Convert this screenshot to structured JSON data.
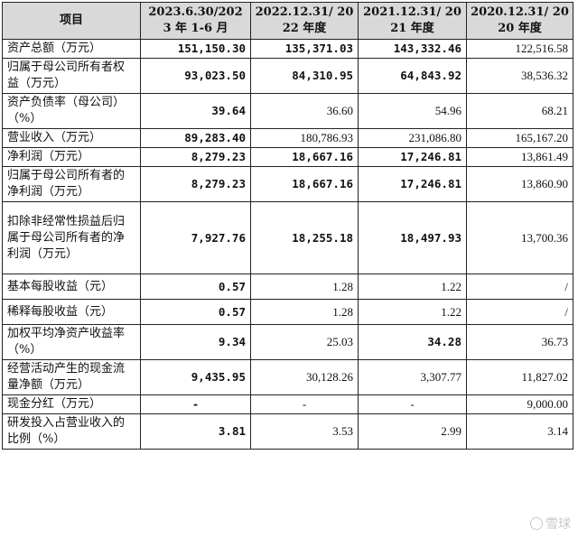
{
  "headers": [
    "项目",
    "2023.6.30/2023 年 1-6 月",
    "2022.12.31/ 2022 年度",
    "2021.12.31/ 2021 年度",
    "2020.12.31/ 2020 年度"
  ],
  "rows": [
    {
      "label": "资产总额（万元）",
      "v1": "151,150.30",
      "v2": "135,371.03",
      "v3": "143,332.46",
      "v4": "122,516.58"
    },
    {
      "label": "归属于母公司所有者权益（万元）",
      "v1": "93,023.50",
      "v2": "84,310.95",
      "v3": "64,843.92",
      "v4": "38,536.32"
    },
    {
      "label": "资产负债率（母公司）（%）",
      "v1": "39.64",
      "v2": "36.60",
      "v3": "54.96",
      "v4": "68.21"
    },
    {
      "label": "营业收入（万元）",
      "v1": "89,283.40",
      "v2": "180,786.93",
      "v3": "231,086.80",
      "v4": "165,167.20"
    },
    {
      "label": "净利润（万元）",
      "v1": "8,279.23",
      "v2": "18,667.16",
      "v3": "17,246.81",
      "v4": "13,861.49"
    },
    {
      "label": "归属于母公司所有者的净利润（万元）",
      "v1": "8,279.23",
      "v2": "18,667.16",
      "v3": "17,246.81",
      "v4": "13,860.90"
    },
    {
      "label": "扣除非经常性损益后归属于母公司所有者的净利润（万元）",
      "v1": "7,927.76",
      "v2": "18,255.18",
      "v3": "18,497.93",
      "v4": "13,700.36"
    },
    {
      "label": "基本每股收益（元）",
      "v1": "0.57",
      "v2": "1.28",
      "v3": "1.22",
      "v4": "/"
    },
    {
      "label": "稀释每股收益（元）",
      "v1": "0.57",
      "v2": "1.28",
      "v3": "1.22",
      "v4": "/"
    },
    {
      "label": "加权平均净资产收益率（%）",
      "v1": "9.34",
      "v2": "25.03",
      "v3": "34.28",
      "v4": "36.73"
    },
    {
      "label": "经营活动产生的现金流量净额（万元）",
      "v1": "9,435.95",
      "v2": "30,128.26",
      "v3": "3,307.77",
      "v4": "11,827.02"
    },
    {
      "label": "现金分红（万元）",
      "v1": "-",
      "v2": "-",
      "v3": "-",
      "v4": "9,000.00"
    },
    {
      "label": "研发投入占营业收入的比例（%）",
      "v1": "3.81",
      "v2": "3.53",
      "v3": "2.99",
      "v4": "3.14"
    }
  ],
  "bold_cells": [
    [
      true,
      true,
      true,
      false
    ],
    [
      true,
      true,
      true,
      false
    ],
    [
      true,
      false,
      false,
      false
    ],
    [
      true,
      false,
      false,
      false
    ],
    [
      true,
      true,
      true,
      false
    ],
    [
      true,
      true,
      true,
      false
    ],
    [
      true,
      true,
      true,
      false
    ],
    [
      true,
      false,
      false,
      false
    ],
    [
      true,
      false,
      false,
      false
    ],
    [
      true,
      false,
      true,
      false
    ],
    [
      true,
      false,
      false,
      false
    ],
    [
      true,
      false,
      false,
      false
    ],
    [
      true,
      false,
      false,
      false
    ]
  ],
  "watermark": {
    "text": "雪球",
    "icon": "snowball-logo-icon"
  }
}
